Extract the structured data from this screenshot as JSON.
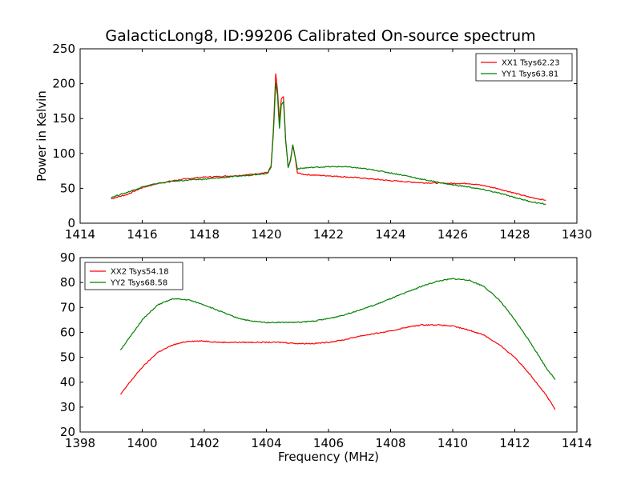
{
  "title": "GalacticLong8, ID:99206 Calibrated On-source spectrum",
  "chart_data": [
    {
      "type": "line",
      "title": "GalacticLong8, ID:99206 Calibrated On-source spectrum",
      "xlabel": "",
      "ylabel": "Power in Kelvin",
      "xlim": [
        1414,
        1430
      ],
      "ylim": [
        0,
        250
      ],
      "xticks": [
        "1414",
        "1416",
        "1418",
        "1420",
        "1422",
        "1424",
        "1426",
        "1428",
        "1430"
      ],
      "yticks": [
        "0",
        "50",
        "100",
        "150",
        "200",
        "250"
      ],
      "legend_position": "top-right",
      "grid": false,
      "series": [
        {
          "name": "XX1 Tsys62.23",
          "color": "#ff0000",
          "points": [
            [
              1415.0,
              35
            ],
            [
              1415.5,
              41
            ],
            [
              1416.0,
              51
            ],
            [
              1416.5,
              57
            ],
            [
              1417.0,
              61
            ],
            [
              1417.5,
              64
            ],
            [
              1418.0,
              66
            ],
            [
              1418.5,
              67
            ],
            [
              1419.0,
              68
            ],
            [
              1419.5,
              70
            ],
            [
              1419.9,
              72
            ],
            [
              1420.05,
              73
            ],
            [
              1420.15,
              82
            ],
            [
              1420.22,
              130
            ],
            [
              1420.3,
              214
            ],
            [
              1420.36,
              190
            ],
            [
              1420.42,
              145
            ],
            [
              1420.48,
              178
            ],
            [
              1420.55,
              181
            ],
            [
              1420.62,
              120
            ],
            [
              1420.7,
              80
            ],
            [
              1420.78,
              90
            ],
            [
              1420.85,
              112
            ],
            [
              1420.92,
              95
            ],
            [
              1421.0,
              72
            ],
            [
              1421.2,
              70
            ],
            [
              1421.5,
              69
            ],
            [
              1422.0,
              68
            ],
            [
              1423.0,
              65
            ],
            [
              1424.0,
              61
            ],
            [
              1425.0,
              58
            ],
            [
              1426.0,
              57
            ],
            [
              1426.5,
              57
            ],
            [
              1427.0,
              54
            ],
            [
              1427.5,
              49
            ],
            [
              1428.0,
              43
            ],
            [
              1428.5,
              37
            ],
            [
              1429.0,
              33
            ]
          ]
        },
        {
          "name": "YY1 Tsys63.81",
          "color": "#008000",
          "points": [
            [
              1415.0,
              37
            ],
            [
              1415.5,
              44
            ],
            [
              1416.0,
              52
            ],
            [
              1416.5,
              57
            ],
            [
              1417.0,
              60
            ],
            [
              1417.5,
              62
            ],
            [
              1418.0,
              63
            ],
            [
              1418.5,
              65
            ],
            [
              1419.0,
              67
            ],
            [
              1419.5,
              69
            ],
            [
              1419.9,
              71
            ],
            [
              1420.05,
              72
            ],
            [
              1420.15,
              80
            ],
            [
              1420.22,
              125
            ],
            [
              1420.3,
              202
            ],
            [
              1420.36,
              182
            ],
            [
              1420.42,
              135
            ],
            [
              1420.48,
              170
            ],
            [
              1420.55,
              175
            ],
            [
              1420.62,
              118
            ],
            [
              1420.7,
              80
            ],
            [
              1420.78,
              92
            ],
            [
              1420.85,
              113
            ],
            [
              1420.92,
              96
            ],
            [
              1421.0,
              78
            ],
            [
              1421.2,
              79
            ],
            [
              1421.5,
              80
            ],
            [
              1422.0,
              81
            ],
            [
              1422.5,
              81
            ],
            [
              1423.0,
              79
            ],
            [
              1423.5,
              76
            ],
            [
              1424.0,
              72
            ],
            [
              1424.5,
              68
            ],
            [
              1425.0,
              63
            ],
            [
              1425.5,
              59
            ],
            [
              1426.0,
              55
            ],
            [
              1426.5,
              52
            ],
            [
              1427.0,
              48
            ],
            [
              1427.5,
              43
            ],
            [
              1428.0,
              37
            ],
            [
              1428.5,
              31
            ],
            [
              1429.0,
              27
            ]
          ]
        }
      ]
    },
    {
      "type": "line",
      "title": "",
      "xlabel": "Frequency (MHz)",
      "ylabel": "",
      "xlim": [
        1398,
        1414
      ],
      "ylim": [
        20,
        90
      ],
      "xticks": [
        "1398",
        "1400",
        "1402",
        "1404",
        "1406",
        "1408",
        "1410",
        "1412",
        "1414"
      ],
      "yticks": [
        "20",
        "30",
        "40",
        "50",
        "60",
        "70",
        "80",
        "90"
      ],
      "legend_position": "top-left",
      "grid": false,
      "series": [
        {
          "name": "XX2 Tsys54.18",
          "color": "#ff0000",
          "points": [
            [
              1399.3,
              35
            ],
            [
              1399.6,
              40
            ],
            [
              1400.0,
              46
            ],
            [
              1400.5,
              52
            ],
            [
              1401.0,
              55
            ],
            [
              1401.5,
              56.5
            ],
            [
              1402.0,
              56.5
            ],
            [
              1402.5,
              56
            ],
            [
              1403.0,
              56
            ],
            [
              1403.5,
              56
            ],
            [
              1404.0,
              56
            ],
            [
              1404.5,
              56
            ],
            [
              1405.0,
              55.5
            ],
            [
              1405.5,
              55.5
            ],
            [
              1406.0,
              56
            ],
            [
              1406.5,
              57
            ],
            [
              1407.0,
              58.5
            ],
            [
              1407.5,
              59.5
            ],
            [
              1408.0,
              60.5
            ],
            [
              1408.5,
              62
            ],
            [
              1409.0,
              63
            ],
            [
              1409.5,
              63
            ],
            [
              1410.0,
              62.5
            ],
            [
              1410.5,
              61
            ],
            [
              1411.0,
              59
            ],
            [
              1411.5,
              55
            ],
            [
              1412.0,
              50
            ],
            [
              1412.5,
              43
            ],
            [
              1413.0,
              35
            ],
            [
              1413.3,
              29
            ]
          ]
        },
        {
          "name": "YY2 Tsys68.58",
          "color": "#008000",
          "points": [
            [
              1399.3,
              53
            ],
            [
              1399.6,
              58
            ],
            [
              1400.0,
              65
            ],
            [
              1400.5,
              71
            ],
            [
              1401.0,
              73.5
            ],
            [
              1401.5,
              73
            ],
            [
              1402.0,
              71
            ],
            [
              1402.5,
              68.5
            ],
            [
              1403.0,
              66
            ],
            [
              1403.5,
              64.5
            ],
            [
              1404.0,
              64
            ],
            [
              1404.5,
              64
            ],
            [
              1405.0,
              64
            ],
            [
              1405.5,
              64.5
            ],
            [
              1406.0,
              65.5
            ],
            [
              1406.5,
              67
            ],
            [
              1407.0,
              69
            ],
            [
              1407.5,
              71
            ],
            [
              1408.0,
              73.5
            ],
            [
              1408.5,
              76
            ],
            [
              1409.0,
              78.5
            ],
            [
              1409.5,
              80.5
            ],
            [
              1410.0,
              81.5
            ],
            [
              1410.5,
              81
            ],
            [
              1411.0,
              78.5
            ],
            [
              1411.5,
              73
            ],
            [
              1412.0,
              65
            ],
            [
              1412.5,
              56
            ],
            [
              1413.0,
              46
            ],
            [
              1413.3,
              41
            ]
          ]
        }
      ]
    }
  ]
}
